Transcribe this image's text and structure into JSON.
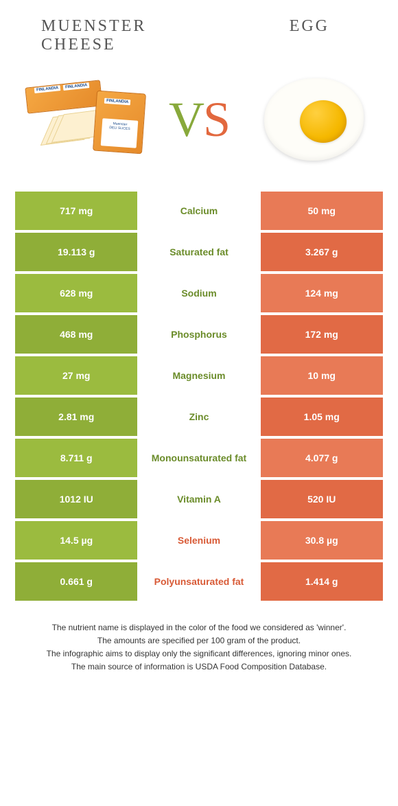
{
  "colors": {
    "green": "#9bbb3f",
    "green_alt": "#8fae38",
    "green_text": "#6b8c2a",
    "orange": "#e87a56",
    "orange_alt": "#e16a45",
    "orange_text": "#d85a36",
    "background": "#ffffff"
  },
  "header": {
    "left_line1": "MUENSTER",
    "left_line2": "CHEESE",
    "right": "EGG"
  },
  "vs": {
    "v": "V",
    "s": "S"
  },
  "rows": [
    {
      "left": "717 mg",
      "label": "Calcium",
      "right": "50 mg",
      "winner": "left"
    },
    {
      "left": "19.113 g",
      "label": "Saturated fat",
      "right": "3.267 g",
      "winner": "left"
    },
    {
      "left": "628 mg",
      "label": "Sodium",
      "right": "124 mg",
      "winner": "left"
    },
    {
      "left": "468 mg",
      "label": "Phosphorus",
      "right": "172 mg",
      "winner": "left"
    },
    {
      "left": "27 mg",
      "label": "Magnesium",
      "right": "10 mg",
      "winner": "left"
    },
    {
      "left": "2.81 mg",
      "label": "Zinc",
      "right": "1.05 mg",
      "winner": "left"
    },
    {
      "left": "8.711 g",
      "label": "Monounsaturated fat",
      "right": "4.077 g",
      "winner": "left"
    },
    {
      "left": "1012 IU",
      "label": "Vitamin A",
      "right": "520 IU",
      "winner": "left"
    },
    {
      "left": "14.5 µg",
      "label": "Selenium",
      "right": "30.8 µg",
      "winner": "right"
    },
    {
      "left": "0.661 g",
      "label": "Polyunsaturated fat",
      "right": "1.414 g",
      "winner": "right"
    }
  ],
  "footer": {
    "l1": "The nutrient name is displayed in the color of the food we considered as 'winner'.",
    "l2": "The amounts are specified per 100 gram of the product.",
    "l3": "The infographic aims to display only the significant differences, ignoring minor ones.",
    "l4": "The main source of information is USDA Food Composition Database."
  }
}
